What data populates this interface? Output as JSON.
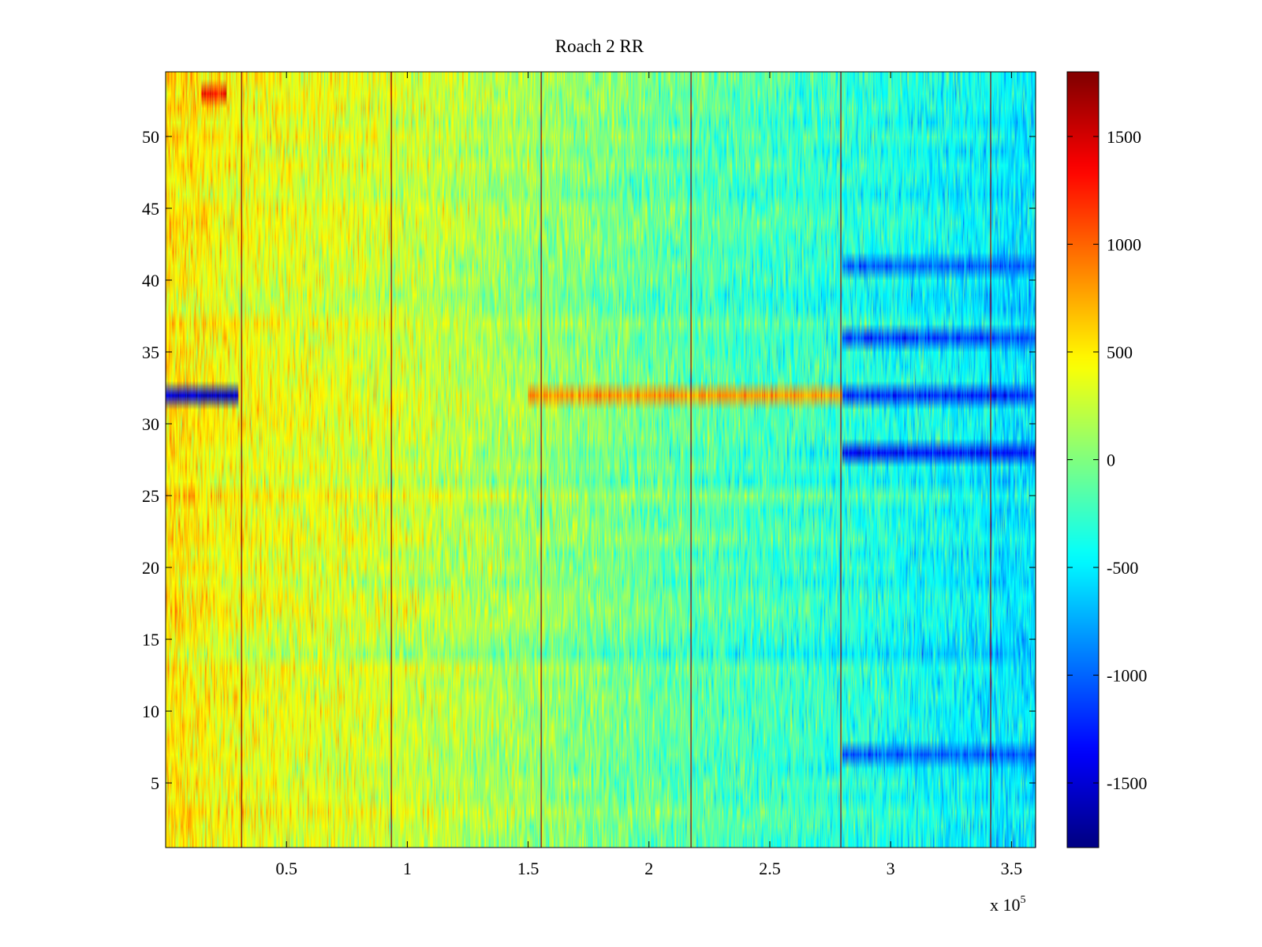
{
  "chart_data": {
    "type": "heatmap",
    "title": "Roach 2 RR",
    "xlabel": "",
    "ylabel": "",
    "x_exponent_label": "x 10",
    "x_exponent_power": "5",
    "xlim": [
      0,
      3.6
    ],
    "ylim": [
      0.5,
      54.5
    ],
    "x_ticks": [
      0.5,
      1,
      1.5,
      2,
      2.5,
      3,
      3.5
    ],
    "x_tick_labels": [
      "0.5",
      "1",
      "1.5",
      "2",
      "2.5",
      "3",
      "3.5"
    ],
    "y_ticks": [
      5,
      10,
      15,
      20,
      25,
      30,
      35,
      40,
      45,
      50
    ],
    "y_tick_labels": [
      "5",
      "10",
      "15",
      "20",
      "25",
      "30",
      "35",
      "40",
      "45",
      "50"
    ],
    "rows": 54,
    "color_range": [
      -1800,
      1800
    ],
    "colorbar_ticks": [
      1500,
      1000,
      500,
      0,
      -500,
      -1000,
      -1500
    ],
    "colorbar_tick_labels": [
      "1500",
      "1000",
      "500",
      "0",
      "-500",
      "-1000",
      "-1500"
    ],
    "colormap": "jet",
    "grid": false,
    "spike_columns_x": [
      0.31,
      0.93,
      1.55,
      2.17,
      2.79,
      3.41
    ],
    "spike_value": 1800,
    "x_trend_values": [
      {
        "x": 0.0,
        "value": 550
      },
      {
        "x": 0.3,
        "value": 400
      },
      {
        "x": 0.9,
        "value": 300
      },
      {
        "x": 1.5,
        "value": 100
      },
      {
        "x": 2.2,
        "value": -150
      },
      {
        "x": 2.8,
        "value": -300
      },
      {
        "x": 3.6,
        "value": -550
      }
    ],
    "row_highlights": [
      {
        "row": 32,
        "x_range": [
          0.0,
          0.3
        ],
        "value": -1500
      },
      {
        "row": 32,
        "x_range": [
          1.5,
          2.8
        ],
        "value": 800
      },
      {
        "row": 32,
        "x_range": [
          2.8,
          3.6
        ],
        "value": -1200
      },
      {
        "row": 28,
        "x_range": [
          2.8,
          3.6
        ],
        "value": -1300
      },
      {
        "row": 36,
        "x_range": [
          2.8,
          3.6
        ],
        "value": -1100
      },
      {
        "row": 41,
        "x_range": [
          2.8,
          3.6
        ],
        "value": -1000
      },
      {
        "row": 7,
        "x_range": [
          2.8,
          3.6
        ],
        "value": -1000
      },
      {
        "row": 53,
        "x_range": [
          0.15,
          0.25
        ],
        "value": 1300
      }
    ]
  }
}
